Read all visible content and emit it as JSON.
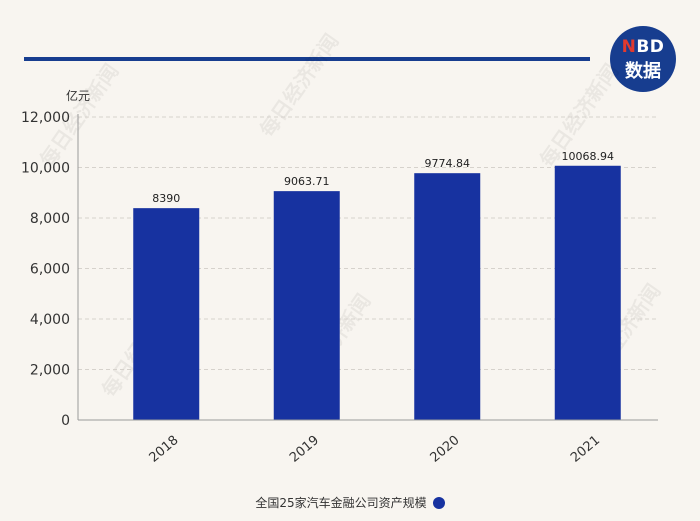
{
  "brand": {
    "logo_line1_accent": "N",
    "logo_line1_rest": "BD",
    "logo_line2": "数据"
  },
  "watermark_text": "每日经济新闻",
  "chart_data": {
    "type": "bar",
    "categories": [
      "2018",
      "2019",
      "2020",
      "2021"
    ],
    "series": [
      {
        "name": "全国25家汽车金融公司资产规模",
        "values": [
          8390,
          9063.71,
          9774.84,
          10068.94
        ]
      }
    ],
    "data_labels": [
      "8390",
      "9063.71",
      "9774.84",
      "10068.94"
    ],
    "y_unit": "亿元",
    "ylim": [
      0,
      12000
    ],
    "yticks": [
      0,
      2000,
      4000,
      6000,
      8000,
      10000,
      12000
    ],
    "ytick_labels": [
      "0",
      "2,000",
      "4,000",
      "6,000",
      "8,000",
      "10,000",
      "12,000"
    ],
    "grid": true,
    "legend_position": "bottom",
    "colors": {
      "bar": "#1732a0",
      "grid": "#d6d2cc",
      "axis": "#9a9a9a"
    }
  }
}
